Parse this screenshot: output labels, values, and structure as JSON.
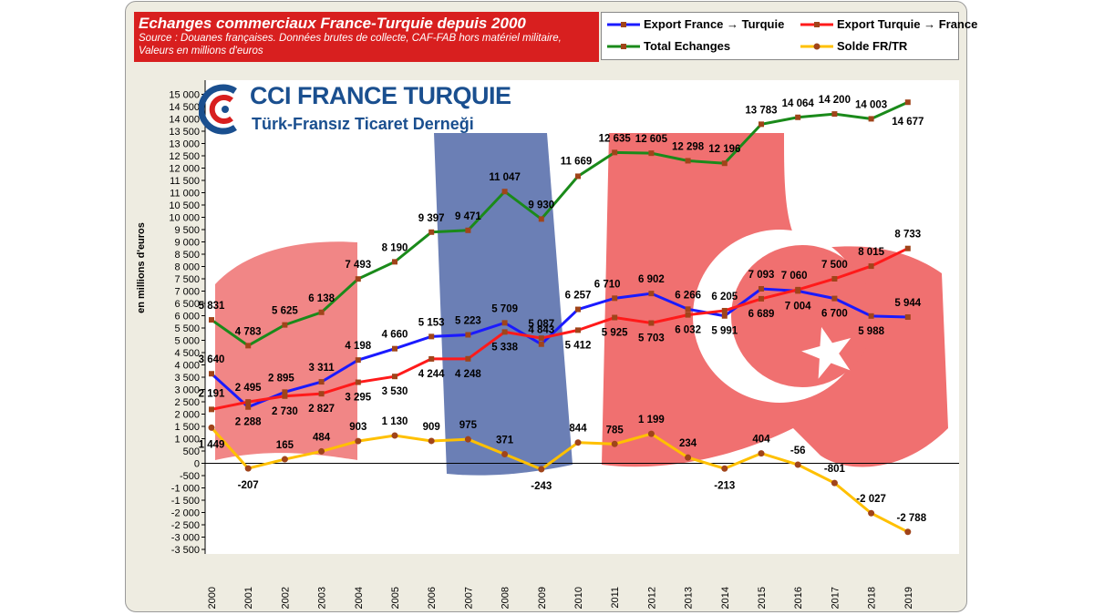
{
  "title": "Echanges commerciaux France-Turquie depuis 2000",
  "source": "Source : Douanes françaises. Données brutes de collecte, CAF-FAB hors matériel militaire,",
  "unit_note": "Valeurs en millions d'euros",
  "logo": {
    "name": "CCI FRANCE TURQUIE",
    "subtitle": "Türk-Fransız Ticaret Derneği"
  },
  "colors": {
    "export_fr": "#1a1aff",
    "export_tr": "#ff1a1a",
    "total": "#1a8a1a",
    "solde": "#ffc000",
    "marker": "#a0441a"
  },
  "chart_data": {
    "type": "line",
    "title": "Echanges commerciaux France-Turquie depuis 2000",
    "ylabel": "en millions d'euros",
    "xlabel": "",
    "ylim": [
      -3500,
      15000
    ],
    "ytick_step": 500,
    "grid": false,
    "legend_position": "top-right",
    "x": [
      "2000",
      "2001",
      "2002",
      "2003",
      "2004",
      "2005",
      "2006",
      "2007",
      "2008",
      "2009",
      "2010",
      "2011",
      "2012",
      "2013",
      "2014",
      "2015",
      "2016",
      "2017",
      "2018",
      "2019"
    ],
    "series": [
      {
        "name": "Export France → Turquie",
        "color": "#1a1aff",
        "values": [
          3640,
          2288,
          2895,
          3311,
          4198,
          4660,
          5153,
          5223,
          5709,
          4843,
          6257,
          6710,
          6902,
          6266,
          5991,
          7093,
          7004,
          6700,
          5988,
          5944
        ],
        "labels": [
          "3 640",
          "2 288",
          "2 895",
          "3 311",
          "4 198",
          "4 660",
          "5 153",
          "5 223",
          "5 709",
          "4 843",
          "6 257",
          "6 710",
          "6 902",
          "6 266",
          "5 991",
          "7 093",
          "7 004",
          "6 700",
          "5 988",
          "5 944"
        ]
      },
      {
        "name": "Export Turquie → France",
        "color": "#ff1a1a",
        "values": [
          2191,
          2495,
          2730,
          2827,
          3295,
          3530,
          4244,
          4248,
          5338,
          5087,
          5412,
          5925,
          5703,
          6032,
          6205,
          6689,
          7060,
          7500,
          8015,
          8733
        ],
        "labels": [
          "2 191",
          "2 495",
          "2 730",
          "2 827",
          "3 295",
          "3 530",
          "4 244",
          "4 248",
          "5 338",
          "5 087",
          "5 412",
          "5 925",
          "5 703",
          "6 032",
          "6 205",
          "6 689",
          "7 060",
          "7 500",
          "8 015",
          "8 733"
        ]
      },
      {
        "name": "Total Echanges",
        "color": "#1a8a1a",
        "values": [
          5831,
          4783,
          5625,
          6138,
          7493,
          8190,
          9397,
          9471,
          11047,
          9930,
          11669,
          12635,
          12605,
          12298,
          12196,
          13783,
          14064,
          14200,
          14003,
          14677
        ],
        "labels": [
          "5 831",
          "4 783",
          "5 625",
          "6 138",
          "7 493",
          "8 190",
          "9 397",
          "9 471",
          "11 047",
          "9 930",
          "11 669",
          "12 635",
          "12 605",
          "12 298",
          "12 196",
          "13 783",
          "14 064",
          "14 200",
          "14 003",
          "14 677"
        ]
      },
      {
        "name": "Solde FR/TR",
        "color": "#ffc000",
        "values": [
          1449,
          -207,
          165,
          484,
          903,
          1130,
          909,
          975,
          371,
          -243,
          844,
          785,
          1199,
          234,
          -213,
          404,
          -56,
          -801,
          -2027,
          -2788
        ],
        "labels": [
          "1 449",
          "-207",
          "165",
          "484",
          "903",
          "1 130",
          "909",
          "975",
          "371",
          "-243",
          "844",
          "785",
          "1 199",
          "234",
          "-213",
          "404",
          "-56",
          "-801",
          "-2 027",
          "-2 788"
        ]
      }
    ]
  }
}
